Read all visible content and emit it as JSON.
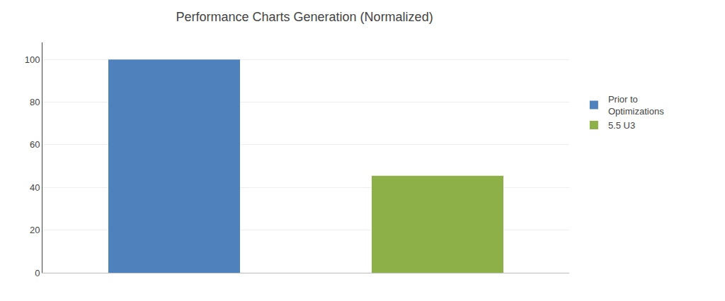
{
  "chart_data": {
    "type": "bar",
    "title": "Performance Charts Generation (Normalized)",
    "categories": [
      null,
      null
    ],
    "series": [
      {
        "name": "Prior to\nOptimizations",
        "color": "#4F81BD",
        "values": [
          100,
          null
        ]
      },
      {
        "name": "5.5 U3",
        "color": "#8DB048",
        "values": [
          null,
          45.5
        ]
      }
    ],
    "ylim": [
      0,
      108
    ],
    "yticks": [
      0,
      20,
      40,
      60,
      80,
      100
    ],
    "grid": true,
    "legend": "right",
    "tick_labels": "y"
  }
}
